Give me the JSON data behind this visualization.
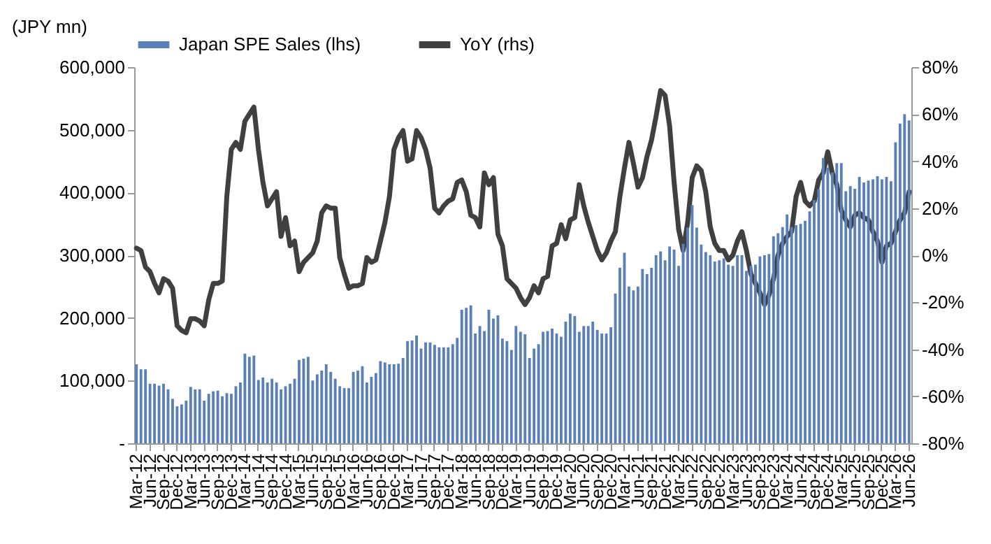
{
  "chart_data": {
    "type": "bar",
    "ylabel": "(JPY mn)",
    "legend": "top",
    "categories": [
      "Mar-12",
      null,
      null,
      "Jun-12",
      null,
      null,
      "Sep-12",
      null,
      null,
      "Dec-12",
      null,
      null,
      "Mar-13",
      null,
      null,
      "Jun-13",
      null,
      null,
      "Sep-13",
      null,
      null,
      "Dec-13",
      null,
      null,
      "Mar-14",
      null,
      null,
      "Jun-14",
      null,
      null,
      "Sep-14",
      null,
      null,
      "Dec-14",
      null,
      null,
      "Mar-15",
      null,
      null,
      "Jun-15",
      null,
      null,
      "Sep-15",
      null,
      null,
      "Dec-15",
      null,
      null,
      "Mar-16",
      null,
      null,
      "Jun-16",
      null,
      null,
      "Sep-16",
      null,
      null,
      "Dec-16",
      null,
      null,
      "Mar-17",
      null,
      null,
      "Jun-17",
      null,
      null,
      "Sep-17",
      null,
      null,
      "Dec-17",
      null,
      null,
      "Mar-18",
      null,
      null,
      "Jun-18",
      null,
      null,
      "Sep-18",
      null,
      null,
      "Dec-18",
      null,
      null,
      "Mar-19",
      null,
      null,
      "Jun-19",
      null,
      null,
      "Sep-19",
      null,
      null,
      "Dec-19",
      null,
      null,
      "Mar-20",
      null,
      null,
      "Jun-20",
      null,
      null,
      "Sep-20",
      null,
      null,
      "Dec-20",
      null,
      null,
      "Mar-21",
      null,
      null,
      "Jun-21",
      null,
      null,
      "Sep-21",
      null,
      null,
      "Dec-21",
      null,
      null,
      "Mar-22",
      null,
      null,
      "Jun-22",
      null,
      null,
      "Sep-22",
      null,
      null,
      "Dec-22",
      null,
      null,
      "Mar-23",
      null,
      null,
      "Jun-23",
      null,
      null,
      "Sep-23",
      null,
      null,
      "Dec-23",
      null,
      null,
      "Mar-24",
      null,
      null,
      "Jun-24",
      null,
      null,
      "Sep-24",
      null,
      null,
      "Dec-24",
      null,
      null,
      "Mar-25",
      null,
      null,
      "Jun-25",
      null,
      null,
      "Sep-25",
      null,
      null,
      "Dec-25",
      null,
      null,
      "Mar-26",
      null,
      null,
      "Jun-26"
    ],
    "series": [
      {
        "name": "Japan SPE Sales (lhs)",
        "color": "#5b80b8",
        "values": [
          126000,
          118000,
          118000,
          95000,
          95000,
          92000,
          95000,
          86000,
          71000,
          59000,
          62000,
          68000,
          90000,
          86000,
          86000,
          68000,
          79000,
          83000,
          84000,
          75000,
          80000,
          79000,
          91000,
          97000,
          143000,
          138000,
          140000,
          101000,
          105000,
          97000,
          103000,
          97000,
          86000,
          91000,
          95000,
          103000,
          133000,
          135000,
          138000,
          100000,
          110000,
          116000,
          126000,
          114000,
          103000,
          91000,
          88000,
          88000,
          114000,
          116000,
          123000,
          97000,
          106000,
          112000,
          131000,
          129000,
          126000,
          126000,
          127000,
          136000,
          163000,
          164000,
          172000,
          151000,
          161000,
          161000,
          157000,
          153000,
          153000,
          153000,
          158000,
          168000,
          213000,
          216000,
          220000,
          175000,
          187000,
          179000,
          213000,
          199000,
          204000,
          167000,
          163000,
          149000,
          187000,
          178000,
          174000,
          136000,
          151000,
          158000,
          178000,
          179000,
          183000,
          175000,
          170000,
          194000,
          207000,
          203000,
          178000,
          187000,
          187000,
          194000,
          181000,
          175000,
          175000,
          185000,
          239000,
          280000,
          304000,
          250000,
          244000,
          250000,
          278000,
          270000,
          280000,
          300000,
          306000,
          292000,
          314000,
          309000,
          283000,
          318000,
          344000,
          380000,
          344000,
          317000,
          305000,
          300000,
          290000,
          292000,
          295000,
          285000,
          283000,
          300000,
          300000,
          275000,
          283000,
          285000,
          298000,
          300000,
          302000,
          330000,
          335000,
          345000,
          365000,
          345000,
          348000,
          350000,
          355000,
          370000,
          388000,
          405000,
          455000,
          440000,
          432000,
          447000,
          447000,
          402000,
          410000,
          406000,
          425000,
          416000,
          419000,
          421000,
          426000,
          421000,
          425000,
          418000,
          480000,
          510000,
          525000,
          515000
        ]
      },
      {
        "name": "YoY (rhs)",
        "type": "line",
        "axis": "y2",
        "color": "#404040",
        "values": [
          3,
          2,
          -5,
          -7,
          -12,
          -16,
          -10,
          -11,
          -14,
          -30,
          -32,
          -33,
          -27,
          -27,
          -28,
          -30,
          -19,
          -12,
          -12,
          -11,
          25,
          45,
          48,
          45,
          57,
          60,
          63,
          45,
          31,
          21,
          24,
          27,
          8,
          16,
          4,
          6,
          -7,
          -3,
          -1,
          1,
          6,
          18,
          21,
          20,
          20,
          -1,
          -8,
          -14,
          -13,
          -13,
          -12,
          -1,
          -3,
          -2,
          6,
          14,
          25,
          45,
          50,
          53,
          40,
          41,
          53,
          50,
          45,
          37,
          20,
          18,
          21,
          23,
          24,
          31,
          32,
          27,
          17,
          16,
          12,
          35,
          30,
          33,
          9,
          4,
          -10,
          -12,
          -14,
          -18,
          -21,
          -18,
          -13,
          -16,
          -10,
          -9,
          4,
          5,
          13,
          7,
          15,
          16,
          30,
          21,
          14,
          8,
          2,
          -2,
          1,
          6,
          10,
          25,
          37,
          48,
          39,
          29,
          33,
          42,
          49,
          59,
          70,
          68,
          55,
          31,
          11,
          2,
          14,
          33,
          38,
          36,
          27,
          12,
          5,
          2,
          2,
          -2,
          0,
          6,
          10,
          2,
          -8,
          -12,
          -16,
          -21,
          -17,
          -10,
          0,
          5,
          8,
          10,
          25,
          31,
          23,
          21,
          23,
          32,
          35,
          44,
          35,
          30,
          19,
          15,
          12,
          17,
          18,
          16,
          15,
          10,
          6,
          -3,
          4,
          5,
          10,
          15,
          18,
          27
        ]
      }
    ],
    "ylim": [
      0,
      600000
    ],
    "yticks": [
      {
        "value": 0,
        "label": "-"
      },
      {
        "value": 100000,
        "label": "100,000"
      },
      {
        "value": 200000,
        "label": "200,000"
      },
      {
        "value": 300000,
        "label": "300,000"
      },
      {
        "value": 400000,
        "label": "400,000"
      },
      {
        "value": 500000,
        "label": "500,000"
      },
      {
        "value": 600000,
        "label": "600,000"
      }
    ],
    "y2lim": [
      -80,
      80
    ],
    "y2ticks": [
      {
        "value": -80,
        "label": "-80%"
      },
      {
        "value": -60,
        "label": "-60%"
      },
      {
        "value": -40,
        "label": "-40%"
      },
      {
        "value": -20,
        "label": "-20%"
      },
      {
        "value": 0,
        "label": "0%"
      },
      {
        "value": 20,
        "label": "20%"
      },
      {
        "value": 40,
        "label": "40%"
      },
      {
        "value": 60,
        "label": "60%"
      },
      {
        "value": 80,
        "label": "80%"
      }
    ]
  }
}
